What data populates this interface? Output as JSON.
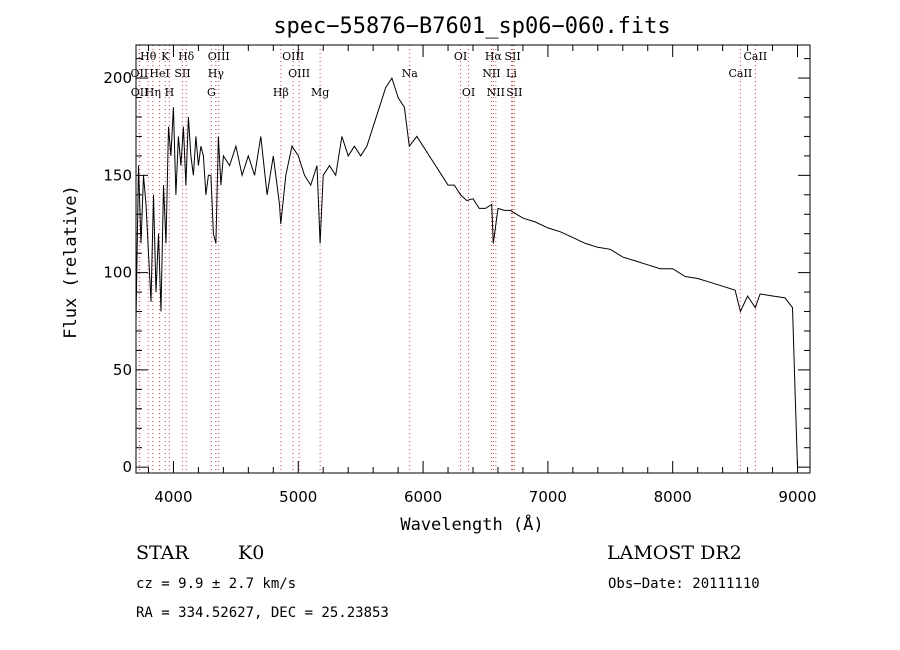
{
  "chart_data": {
    "type": "line",
    "title": "spec−55876−B7601_sp06−060.fits",
    "xlabel": "Wavelength (Å)",
    "ylabel": "Flux (relative)",
    "xlim": [
      3700,
      9100
    ],
    "ylim": [
      -3,
      217
    ],
    "xticks": [
      4000,
      5000,
      6000,
      7000,
      8000,
      9000
    ],
    "yticks": [
      0,
      50,
      100,
      150,
      200
    ],
    "grid": false,
    "series": [
      {
        "x": [
          3700,
          3720,
          3740,
          3760,
          3780,
          3800,
          3820,
          3840,
          3860,
          3880,
          3900,
          3920,
          3940,
          3960,
          3980,
          4000,
          4020,
          4040,
          4060,
          4080,
          4100,
          4120,
          4140,
          4160,
          4180,
          4200,
          4220,
          4240,
          4260,
          4280,
          4300,
          4320,
          4340,
          4360,
          4380,
          4400,
          4450,
          4500,
          4550,
          4600,
          4650,
          4700,
          4750,
          4800,
          4850,
          4860,
          4900,
          4950,
          5000,
          5050,
          5100,
          5150,
          5175,
          5200,
          5250,
          5300,
          5350,
          5400,
          5450,
          5500,
          5550,
          5600,
          5650,
          5700,
          5750,
          5800,
          5850,
          5890,
          5950,
          6000,
          6050,
          6100,
          6150,
          6200,
          6250,
          6300,
          6350,
          6400,
          6450,
          6500,
          6550,
          6563,
          6600,
          6650,
          6700,
          6750,
          6800,
          6900,
          7000,
          7100,
          7200,
          7300,
          7400,
          7500,
          7600,
          7700,
          7800,
          7900,
          8000,
          8100,
          8200,
          8300,
          8400,
          8500,
          8542,
          8600,
          8662,
          8700,
          8800,
          8900,
          8960,
          8980,
          9000
        ],
        "y": [
          75,
          155,
          115,
          150,
          135,
          110,
          85,
          140,
          90,
          120,
          80,
          145,
          115,
          175,
          160,
          185,
          140,
          170,
          155,
          175,
          145,
          180,
          160,
          150,
          170,
          155,
          165,
          160,
          140,
          150,
          150,
          120,
          115,
          170,
          145,
          160,
          155,
          165,
          150,
          160,
          150,
          170,
          140,
          160,
          135,
          125,
          150,
          165,
          160,
          150,
          145,
          155,
          115,
          150,
          155,
          150,
          170,
          160,
          165,
          160,
          165,
          175,
          185,
          195,
          200,
          190,
          185,
          165,
          170,
          165,
          160,
          155,
          150,
          145,
          145,
          140,
          137,
          138,
          133,
          133,
          135,
          115,
          133,
          132,
          132,
          130,
          128,
          126,
          123,
          121,
          118,
          115,
          113,
          112,
          108,
          106,
          104,
          102,
          102,
          98,
          97,
          95,
          93,
          91,
          80,
          88,
          82,
          89,
          88,
          87,
          82,
          40,
          0
        ]
      }
    ],
    "lines": [
      {
        "name": "Hθ",
        "x": 3798
      },
      {
        "name": "K",
        "x": 3934
      },
      {
        "name": "Hδ",
        "x": 4102
      },
      {
        "name": "OIII",
        "x": 4363
      },
      {
        "name": "OIII",
        "x": 4959
      },
      {
        "name": "OI",
        "x": 6300
      },
      {
        "name": "Hα",
        "x": 6563
      },
      {
        "name": "SII",
        "x": 6717
      },
      {
        "name": "CaII",
        "x": 8662
      },
      {
        "name": "OII",
        "x": 3727
      },
      {
        "name": "HeI",
        "x": 3889
      },
      {
        "name": "SII",
        "x": 4072
      },
      {
        "name": "Hγ",
        "x": 4340
      },
      {
        "name": "OIII",
        "x": 5007
      },
      {
        "name": "Na",
        "x": 5893
      },
      {
        "name": "NII",
        "x": 6548
      },
      {
        "name": "Li",
        "x": 6708
      },
      {
        "name": "CaII",
        "x": 8542
      },
      {
        "name": "OII",
        "x": 3729
      },
      {
        "name": "Hη",
        "x": 3835
      },
      {
        "name": "H",
        "x": 3968
      },
      {
        "name": "G",
        "x": 4304
      },
      {
        "name": "Hβ",
        "x": 4861
      },
      {
        "name": "Mg",
        "x": 5175
      },
      {
        "name": "OI",
        "x": 6364
      },
      {
        "name": "NII",
        "x": 6583
      },
      {
        "name": "SII",
        "x": 6731
      }
    ]
  },
  "info": {
    "object_class": "STAR",
    "subclass": "K0",
    "cz": "cz = 9.9 ± 2.7 km/s",
    "coords": "RA = 334.52627, DEC =  25.23853",
    "survey": "LAMOST DR2",
    "obs_date": "Obs−Date: 20111110"
  },
  "colors": {
    "line_marker": "#c84040",
    "spectrum": "#000000",
    "axes": "#000000"
  }
}
